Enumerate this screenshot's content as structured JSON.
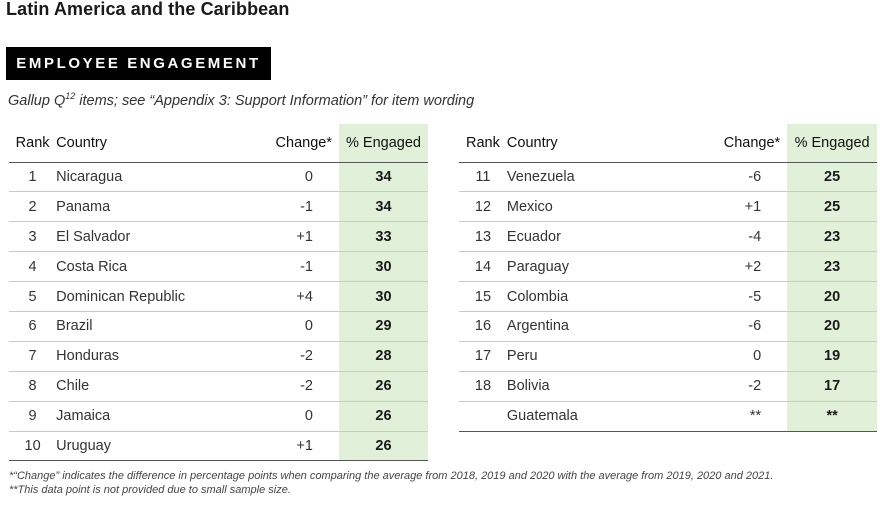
{
  "header": {
    "title": "Latin America and the Caribbean",
    "badge": "EMPLOYEE ENGAGEMENT",
    "subtitle_before_sup": "Gallup Q",
    "subtitle_sup": "12",
    "subtitle_after_sup": " items; see “Appendix 3: Support Information” for item wording"
  },
  "columns": {
    "rank": "Rank",
    "country": "Country",
    "change": "Change*",
    "engaged": "% Engaged"
  },
  "left_rows": [
    {
      "rank": "1",
      "country": "Nicaragua",
      "change": "0",
      "engaged": "34"
    },
    {
      "rank": "2",
      "country": "Panama",
      "change": "-1",
      "engaged": "34"
    },
    {
      "rank": "3",
      "country": "El Salvador",
      "change": "+1",
      "engaged": "33"
    },
    {
      "rank": "4",
      "country": "Costa Rica",
      "change": "-1",
      "engaged": "30"
    },
    {
      "rank": "5",
      "country": "Dominican Republic",
      "change": "+4",
      "engaged": "30"
    },
    {
      "rank": "6",
      "country": "Brazil",
      "change": "0",
      "engaged": "29"
    },
    {
      "rank": "7",
      "country": "Honduras",
      "change": "-2",
      "engaged": "28"
    },
    {
      "rank": "8",
      "country": "Chile",
      "change": "-2",
      "engaged": "26"
    },
    {
      "rank": "9",
      "country": "Jamaica",
      "change": "0",
      "engaged": "26"
    },
    {
      "rank": "10",
      "country": "Uruguay",
      "change": "+1",
      "engaged": "26"
    }
  ],
  "right_rows": [
    {
      "rank": "11",
      "country": "Venezuela",
      "change": "-6",
      "engaged": "25"
    },
    {
      "rank": "12",
      "country": "Mexico",
      "change": "+1",
      "engaged": "25"
    },
    {
      "rank": "13",
      "country": "Ecuador",
      "change": "-4",
      "engaged": "23"
    },
    {
      "rank": "14",
      "country": "Paraguay",
      "change": "+2",
      "engaged": "23"
    },
    {
      "rank": "15",
      "country": "Colombia",
      "change": "-5",
      "engaged": "20"
    },
    {
      "rank": "16",
      "country": "Argentina",
      "change": "-6",
      "engaged": "20"
    },
    {
      "rank": "17",
      "country": "Peru",
      "change": "0",
      "engaged": "19"
    },
    {
      "rank": "18",
      "country": "Bolivia",
      "change": "-2",
      "engaged": "17"
    },
    {
      "rank": "",
      "country": "Guatemala",
      "change": "**",
      "engaged": "**"
    }
  ],
  "footnotes": {
    "change": "*“Change” indicates the difference in percentage points when comparing the average from 2018, 2019 and 2020 with the average from 2019, 2020 and 2021.",
    "missing": "**This data point is not provided due to small sample size."
  },
  "colors": {
    "highlight": "#e1f0d9",
    "badge_bg": "#000000",
    "badge_text": "#ffffff"
  }
}
